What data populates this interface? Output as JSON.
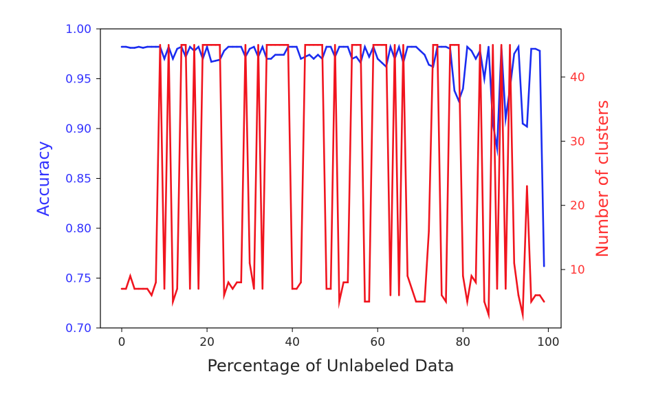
{
  "chart_data": {
    "type": "line",
    "xlabel": "Percentage of Unlabeled Data",
    "ylabel_left": "Accuracy",
    "ylabel_right": "Number of clusters",
    "xlim": [
      -5,
      103
    ],
    "ylim_left": [
      0.7,
      1.0
    ],
    "ylim_right": [
      0.9,
      47.5
    ],
    "x_ticks": [
      "0",
      "20",
      "40",
      "60",
      "80",
      "100"
    ],
    "x_tick_values": [
      0,
      20,
      40,
      60,
      80,
      100
    ],
    "y_left_ticks": [
      "0.70",
      "0.75",
      "0.80",
      "0.85",
      "0.90",
      "0.95",
      "1.00"
    ],
    "y_left_tick_values": [
      0.7,
      0.75,
      0.8,
      0.85,
      0.9,
      0.95,
      1.0
    ],
    "y_right_ticks": [
      "10",
      "20",
      "30",
      "40"
    ],
    "y_right_tick_values": [
      10,
      20,
      30,
      40
    ],
    "colors": {
      "accuracy": "#1a2cf0",
      "clusters": "#f0141e",
      "axis": "#000000",
      "left_text": "#3333ff",
      "right_text": "#ff3333"
    },
    "series": [
      {
        "name": "Accuracy",
        "axis": "left",
        "x": [
          0,
          1,
          2,
          3,
          4,
          5,
          6,
          7,
          8,
          9,
          10,
          11,
          12,
          13,
          14,
          15,
          16,
          17,
          18,
          19,
          20,
          21,
          22,
          23,
          24,
          25,
          26,
          27,
          28,
          29,
          30,
          31,
          32,
          33,
          34,
          35,
          36,
          37,
          38,
          39,
          40,
          41,
          42,
          43,
          44,
          45,
          46,
          47,
          48,
          49,
          50,
          51,
          52,
          53,
          54,
          55,
          56,
          57,
          58,
          59,
          60,
          61,
          62,
          63,
          64,
          65,
          66,
          67,
          68,
          69,
          70,
          71,
          72,
          73,
          74,
          75,
          76,
          77,
          78,
          79,
          80,
          81,
          82,
          83,
          84,
          85,
          86,
          87,
          88,
          89,
          90,
          91,
          92,
          93,
          94,
          95,
          96,
          97,
          98,
          99
        ],
        "values": [
          0.982,
          0.982,
          0.981,
          0.981,
          0.982,
          0.981,
          0.982,
          0.982,
          0.982,
          0.982,
          0.97,
          0.982,
          0.97,
          0.98,
          0.982,
          0.972,
          0.982,
          0.978,
          0.982,
          0.97,
          0.982,
          0.967,
          0.968,
          0.969,
          0.978,
          0.982,
          0.982,
          0.982,
          0.982,
          0.972,
          0.98,
          0.982,
          0.972,
          0.982,
          0.97,
          0.97,
          0.974,
          0.974,
          0.974,
          0.982,
          0.982,
          0.982,
          0.97,
          0.972,
          0.974,
          0.97,
          0.974,
          0.97,
          0.982,
          0.982,
          0.972,
          0.982,
          0.982,
          0.982,
          0.97,
          0.972,
          0.966,
          0.982,
          0.972,
          0.982,
          0.97,
          0.966,
          0.962,
          0.982,
          0.97,
          0.982,
          0.966,
          0.982,
          0.982,
          0.982,
          0.978,
          0.974,
          0.964,
          0.962,
          0.982,
          0.982,
          0.982,
          0.98,
          0.938,
          0.928,
          0.94,
          0.982,
          0.978,
          0.97,
          0.978,
          0.95,
          0.982,
          0.905,
          0.88,
          0.982,
          0.91,
          0.94,
          0.975,
          0.982,
          0.905,
          0.902,
          0.98,
          0.98,
          0.978,
          0.762
        ]
      },
      {
        "name": "Number of clusters",
        "axis": "right",
        "x": [
          0,
          1,
          2,
          3,
          4,
          5,
          6,
          7,
          8,
          9,
          10,
          11,
          12,
          13,
          14,
          15,
          16,
          17,
          18,
          19,
          20,
          21,
          22,
          23,
          24,
          25,
          26,
          27,
          28,
          29,
          30,
          31,
          32,
          33,
          34,
          35,
          36,
          37,
          38,
          39,
          40,
          41,
          42,
          43,
          44,
          45,
          46,
          47,
          48,
          49,
          50,
          51,
          52,
          53,
          54,
          55,
          56,
          57,
          58,
          59,
          60,
          61,
          62,
          63,
          64,
          65,
          66,
          67,
          68,
          69,
          70,
          71,
          72,
          73,
          74,
          75,
          76,
          77,
          78,
          79,
          80,
          81,
          82,
          83,
          84,
          85,
          86,
          87,
          88,
          89,
          90,
          91,
          92,
          93,
          94,
          95,
          96,
          97,
          98,
          99
        ],
        "values": [
          7,
          7,
          9,
          7,
          7,
          7,
          7,
          6,
          8,
          45,
          7,
          45,
          5,
          7,
          45,
          45,
          7,
          45,
          7,
          45,
          45,
          45,
          45,
          45,
          6,
          8,
          7,
          8,
          8,
          45,
          11,
          7,
          45,
          7,
          45,
          45,
          45,
          45,
          45,
          45,
          7,
          7,
          8,
          45,
          45,
          45,
          45,
          45,
          7,
          7,
          45,
          5,
          8,
          8,
          45,
          45,
          45,
          5,
          5,
          45,
          45,
          45,
          45,
          6,
          45,
          6,
          45,
          9,
          7,
          5,
          5,
          5,
          16,
          45,
          45,
          6,
          5,
          45,
          45,
          45,
          9,
          5,
          9,
          8,
          45,
          5,
          3,
          45,
          7,
          45,
          7,
          45,
          11,
          6,
          3,
          23,
          5,
          6,
          6,
          5
        ]
      }
    ]
  }
}
